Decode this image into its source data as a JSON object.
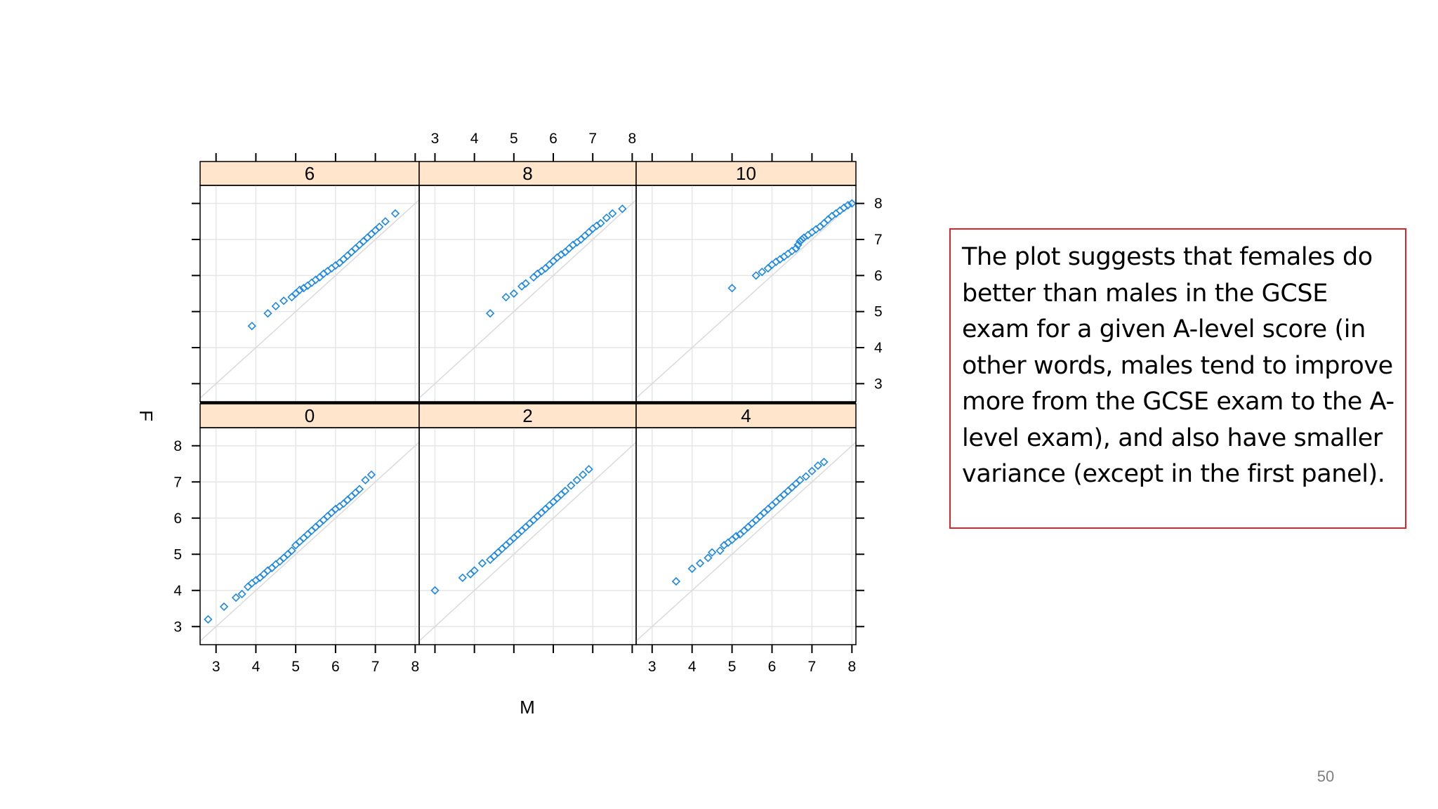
{
  "slide": {
    "callout_text": "The plot suggests that females do better than males in the GCSE exam for a given A-level score (in other words, males tend to improve more from the GCSE exam to the A-level exam), and also have smaller variance (except in the first panel).",
    "page_number": "50"
  },
  "colors": {
    "point": "#1e88e5",
    "strip_bg": "#ffe5cc",
    "grid": "#e6e6e6",
    "ref_line": "#dadada",
    "callout_border": "#d9262c"
  },
  "chart_data": {
    "type": "scatter",
    "layout": "lattice trellis, 3 columns x 2 rows",
    "xlabel": "M",
    "ylabel": "F",
    "xlim": [
      2.6,
      8.1
    ],
    "ylim": [
      2.5,
      8.5
    ],
    "x_ticks": [
      "3",
      "4",
      "5",
      "6",
      "7",
      "8"
    ],
    "y_ticks": [
      "3",
      "4",
      "5",
      "6",
      "7",
      "8"
    ],
    "grid": true,
    "reference_line": "y = x",
    "marker": "open diamond",
    "panels": [
      {
        "label": "0",
        "row": "bottom",
        "col": 0,
        "points": [
          [
            2.8,
            3.2
          ],
          [
            3.2,
            3.55
          ],
          [
            3.5,
            3.8
          ],
          [
            3.65,
            3.9
          ],
          [
            3.8,
            4.1
          ],
          [
            3.9,
            4.2
          ],
          [
            4.0,
            4.28
          ],
          [
            4.1,
            4.35
          ],
          [
            4.2,
            4.45
          ],
          [
            4.3,
            4.55
          ],
          [
            4.4,
            4.62
          ],
          [
            4.5,
            4.72
          ],
          [
            4.6,
            4.8
          ],
          [
            4.7,
            4.9
          ],
          [
            4.8,
            5.0
          ],
          [
            4.9,
            5.1
          ],
          [
            5.0,
            5.25
          ],
          [
            5.1,
            5.35
          ],
          [
            5.2,
            5.45
          ],
          [
            5.3,
            5.55
          ],
          [
            5.4,
            5.65
          ],
          [
            5.5,
            5.75
          ],
          [
            5.6,
            5.85
          ],
          [
            5.7,
            5.95
          ],
          [
            5.8,
            6.05
          ],
          [
            5.9,
            6.15
          ],
          [
            6.0,
            6.25
          ],
          [
            6.1,
            6.32
          ],
          [
            6.2,
            6.4
          ],
          [
            6.3,
            6.5
          ],
          [
            6.4,
            6.6
          ],
          [
            6.5,
            6.7
          ],
          [
            6.6,
            6.8
          ],
          [
            6.75,
            7.05
          ],
          [
            6.9,
            7.2
          ]
        ]
      },
      {
        "label": "2",
        "row": "bottom",
        "col": 1,
        "points": [
          [
            3.0,
            4.0
          ],
          [
            3.7,
            4.35
          ],
          [
            3.9,
            4.45
          ],
          [
            4.0,
            4.55
          ],
          [
            4.2,
            4.75
          ],
          [
            4.4,
            4.85
          ],
          [
            4.5,
            4.95
          ],
          [
            4.6,
            5.05
          ],
          [
            4.7,
            5.15
          ],
          [
            4.8,
            5.25
          ],
          [
            4.9,
            5.35
          ],
          [
            5.0,
            5.45
          ],
          [
            5.1,
            5.55
          ],
          [
            5.2,
            5.65
          ],
          [
            5.3,
            5.75
          ],
          [
            5.4,
            5.85
          ],
          [
            5.5,
            5.95
          ],
          [
            5.6,
            6.05
          ],
          [
            5.7,
            6.15
          ],
          [
            5.8,
            6.25
          ],
          [
            5.9,
            6.35
          ],
          [
            6.0,
            6.45
          ],
          [
            6.1,
            6.55
          ],
          [
            6.2,
            6.65
          ],
          [
            6.3,
            6.75
          ],
          [
            6.45,
            6.9
          ],
          [
            6.6,
            7.05
          ],
          [
            6.75,
            7.2
          ],
          [
            6.9,
            7.35
          ]
        ]
      },
      {
        "label": "4",
        "row": "bottom",
        "col": 2,
        "points": [
          [
            3.6,
            4.25
          ],
          [
            4.0,
            4.6
          ],
          [
            4.2,
            4.75
          ],
          [
            4.4,
            4.9
          ],
          [
            4.5,
            5.05
          ],
          [
            4.7,
            5.1
          ],
          [
            4.8,
            5.25
          ],
          [
            4.9,
            5.32
          ],
          [
            5.0,
            5.4
          ],
          [
            5.1,
            5.5
          ],
          [
            5.2,
            5.55
          ],
          [
            5.3,
            5.65
          ],
          [
            5.4,
            5.75
          ],
          [
            5.5,
            5.85
          ],
          [
            5.6,
            5.95
          ],
          [
            5.7,
            6.05
          ],
          [
            5.8,
            6.15
          ],
          [
            5.9,
            6.25
          ],
          [
            6.0,
            6.35
          ],
          [
            6.1,
            6.45
          ],
          [
            6.2,
            6.55
          ],
          [
            6.3,
            6.65
          ],
          [
            6.4,
            6.75
          ],
          [
            6.5,
            6.85
          ],
          [
            6.6,
            6.95
          ],
          [
            6.7,
            7.05
          ],
          [
            6.85,
            7.15
          ],
          [
            7.0,
            7.3
          ],
          [
            7.15,
            7.45
          ],
          [
            7.3,
            7.55
          ]
        ]
      },
      {
        "label": "6",
        "row": "top",
        "col": 0,
        "points": [
          [
            3.9,
            4.6
          ],
          [
            4.3,
            4.95
          ],
          [
            4.5,
            5.15
          ],
          [
            4.7,
            5.3
          ],
          [
            4.9,
            5.4
          ],
          [
            5.0,
            5.5
          ],
          [
            5.1,
            5.6
          ],
          [
            5.2,
            5.65
          ],
          [
            5.3,
            5.72
          ],
          [
            5.4,
            5.8
          ],
          [
            5.5,
            5.88
          ],
          [
            5.6,
            5.95
          ],
          [
            5.7,
            6.05
          ],
          [
            5.8,
            6.12
          ],
          [
            5.9,
            6.2
          ],
          [
            6.0,
            6.28
          ],
          [
            6.1,
            6.35
          ],
          [
            6.2,
            6.45
          ],
          [
            6.3,
            6.55
          ],
          [
            6.4,
            6.65
          ],
          [
            6.5,
            6.75
          ],
          [
            6.6,
            6.85
          ],
          [
            6.7,
            6.95
          ],
          [
            6.8,
            7.05
          ],
          [
            6.9,
            7.15
          ],
          [
            7.0,
            7.25
          ],
          [
            7.1,
            7.35
          ],
          [
            7.25,
            7.5
          ],
          [
            7.5,
            7.72
          ]
        ]
      },
      {
        "label": "8",
        "row": "top",
        "col": 1,
        "points": [
          [
            4.4,
            4.95
          ],
          [
            4.8,
            5.4
          ],
          [
            5.0,
            5.5
          ],
          [
            5.2,
            5.7
          ],
          [
            5.3,
            5.78
          ],
          [
            5.5,
            5.95
          ],
          [
            5.6,
            6.05
          ],
          [
            5.7,
            6.12
          ],
          [
            5.8,
            6.2
          ],
          [
            5.9,
            6.3
          ],
          [
            6.0,
            6.4
          ],
          [
            6.1,
            6.5
          ],
          [
            6.2,
            6.58
          ],
          [
            6.3,
            6.65
          ],
          [
            6.4,
            6.75
          ],
          [
            6.5,
            6.85
          ],
          [
            6.6,
            6.92
          ],
          [
            6.7,
            7.0
          ],
          [
            6.8,
            7.1
          ],
          [
            6.9,
            7.2
          ],
          [
            7.0,
            7.3
          ],
          [
            7.1,
            7.38
          ],
          [
            7.2,
            7.45
          ],
          [
            7.35,
            7.6
          ],
          [
            7.5,
            7.72
          ],
          [
            7.75,
            7.85
          ]
        ]
      },
      {
        "label": "10",
        "row": "top",
        "col": 2,
        "points": [
          [
            5.0,
            5.65
          ],
          [
            5.6,
            6.0
          ],
          [
            5.75,
            6.1
          ],
          [
            5.9,
            6.2
          ],
          [
            6.0,
            6.3
          ],
          [
            6.1,
            6.38
          ],
          [
            6.2,
            6.45
          ],
          [
            6.3,
            6.52
          ],
          [
            6.4,
            6.6
          ],
          [
            6.5,
            6.68
          ],
          [
            6.6,
            6.75
          ],
          [
            6.65,
            6.85
          ],
          [
            6.7,
            6.95
          ],
          [
            6.75,
            7.0
          ],
          [
            6.8,
            7.05
          ],
          [
            6.9,
            7.12
          ],
          [
            7.0,
            7.2
          ],
          [
            7.1,
            7.28
          ],
          [
            7.2,
            7.35
          ],
          [
            7.3,
            7.45
          ],
          [
            7.4,
            7.55
          ],
          [
            7.5,
            7.65
          ],
          [
            7.6,
            7.72
          ],
          [
            7.7,
            7.8
          ],
          [
            7.8,
            7.88
          ],
          [
            7.9,
            7.95
          ],
          [
            8.0,
            8.0
          ]
        ]
      }
    ]
  }
}
